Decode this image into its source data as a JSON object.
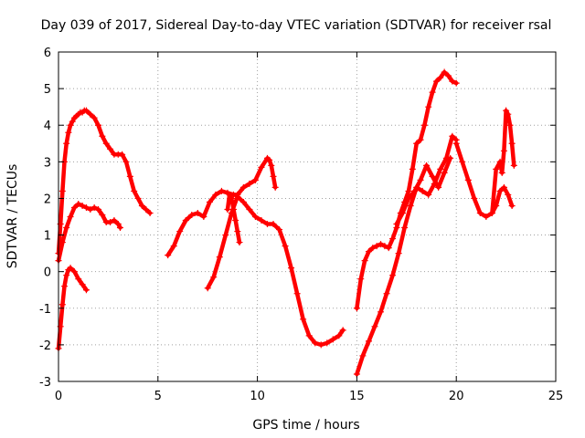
{
  "chart_data": {
    "type": "scatter",
    "title": "Day 039 of 2017, Sidereal Day-to-day VTEC variation (SDTVAR) for receiver rsal",
    "xlabel": "GPS time / hours",
    "ylabel": "SDTVAR / TECUs",
    "xlim": [
      0,
      25
    ],
    "ylim": [
      -3,
      6
    ],
    "xticks": [
      "0",
      "5",
      "10",
      "15",
      "20",
      "25"
    ],
    "yticks": [
      "-3",
      "-2",
      "-1",
      "0",
      "1",
      "2",
      "3",
      "4",
      "5",
      "6"
    ],
    "grid": true,
    "marker": "plus",
    "color": "#ff0000",
    "series": [
      {
        "x": [
          0,
          0.1,
          0.2,
          0.3,
          0.4,
          0.5,
          0.6,
          0.7,
          0.8,
          0.9,
          1.0,
          1.1,
          1.2,
          1.3,
          1.4,
          1.6,
          1.8,
          2.0,
          2.2,
          2.4,
          2.6,
          2.8,
          3.0,
          3.2,
          3.4,
          3.6,
          3.8,
          4.0,
          4.2,
          4.4,
          4.6
        ],
        "y": [
          0.5,
          1.3,
          2.2,
          3.0,
          3.5,
          3.8,
          4.0,
          4.1,
          4.2,
          4.25,
          4.3,
          4.35,
          4.35,
          4.4,
          4.4,
          4.3,
          4.2,
          4.0,
          3.7,
          3.5,
          3.35,
          3.2,
          3.2,
          3.2,
          3.0,
          2.6,
          2.2,
          2.0,
          1.8,
          1.7,
          1.6
        ]
      },
      {
        "x": [
          0,
          0.2,
          0.4,
          0.6,
          0.8,
          1.0,
          1.2,
          1.4,
          1.6,
          1.8,
          2.0,
          2.2,
          2.4,
          2.6,
          2.8,
          3.0,
          3.1
        ],
        "y": [
          0.3,
          0.8,
          1.2,
          1.5,
          1.75,
          1.85,
          1.8,
          1.75,
          1.7,
          1.75,
          1.7,
          1.55,
          1.35,
          1.35,
          1.4,
          1.3,
          1.2
        ]
      },
      {
        "x": [
          0,
          0.1,
          0.2,
          0.3,
          0.4,
          0.5,
          0.6,
          0.8,
          1.0,
          1.2,
          1.4
        ],
        "y": [
          -2.1,
          -1.5,
          -0.9,
          -0.4,
          -0.1,
          0.05,
          0.1,
          0.0,
          -0.2,
          -0.35,
          -0.5
        ]
      },
      {
        "x": [
          5.5,
          5.8,
          6.1,
          6.4,
          6.7,
          7.0,
          7.3,
          7.6,
          7.9,
          8.2,
          8.5,
          8.8,
          9.0,
          9.3,
          9.6,
          9.9,
          10.2,
          10.5,
          10.6,
          10.7,
          10.8,
          10.9
        ],
        "y": [
          0.45,
          0.7,
          1.1,
          1.4,
          1.55,
          1.6,
          1.5,
          1.9,
          2.1,
          2.2,
          2.15,
          2.1,
          2.1,
          2.3,
          2.4,
          2.5,
          2.85,
          3.1,
          3.05,
          2.9,
          2.6,
          2.3
        ]
      },
      {
        "x": [
          7.5,
          7.8,
          8.1,
          8.4,
          8.7,
          9.0,
          9.3,
          9.6,
          9.9,
          10.2,
          10.5,
          10.8,
          11.1,
          11.4,
          11.7,
          12.0,
          12.3,
          12.6,
          12.9,
          13.2,
          13.5,
          13.8,
          14.1,
          14.3
        ],
        "y": [
          -0.45,
          -0.15,
          0.4,
          1.0,
          1.6,
          2.05,
          1.9,
          1.7,
          1.5,
          1.4,
          1.3,
          1.3,
          1.15,
          0.7,
          0.1,
          -0.6,
          -1.3,
          -1.75,
          -1.95,
          -2.0,
          -1.95,
          -1.85,
          -1.75,
          -1.6
        ]
      },
      {
        "x": [
          8.5,
          8.6,
          8.7,
          8.8,
          8.9,
          9.0,
          9.1
        ],
        "y": [
          1.7,
          2.1,
          2.0,
          1.7,
          1.4,
          1.1,
          0.8
        ]
      },
      {
        "x": [
          15.0,
          15.2,
          15.4,
          15.6,
          15.8,
          16.0,
          16.2,
          16.4,
          16.6,
          16.8,
          17.0,
          17.2,
          17.4,
          17.6,
          17.8,
          18.0,
          18.2,
          18.4,
          18.6,
          18.8,
          19.0,
          19.2,
          19.4,
          19.6,
          19.8,
          20.0
        ],
        "y": [
          -1.0,
          -0.2,
          0.3,
          0.55,
          0.65,
          0.7,
          0.75,
          0.7,
          0.65,
          0.9,
          1.2,
          1.6,
          1.9,
          2.2,
          2.8,
          3.5,
          3.6,
          4.0,
          4.5,
          4.9,
          5.2,
          5.3,
          5.45,
          5.35,
          5.2,
          5.15
        ]
      },
      {
        "x": [
          15.0,
          15.3,
          15.6,
          15.9,
          16.2,
          16.5,
          16.8,
          17.1,
          17.4,
          17.7,
          18.0,
          18.3,
          18.6,
          18.9,
          19.2,
          19.5,
          19.8,
          20.0
        ],
        "y": [
          -2.8,
          -2.3,
          -1.9,
          -1.5,
          -1.1,
          -0.6,
          -0.1,
          0.5,
          1.2,
          1.8,
          2.3,
          2.2,
          2.1,
          2.4,
          2.8,
          3.1,
          3.7,
          3.6
        ]
      },
      {
        "x": [
          17.0,
          17.3,
          17.6,
          17.9,
          18.2,
          18.5,
          18.8,
          19.1,
          19.4,
          19.7
        ],
        "y": [
          1.3,
          1.6,
          2.0,
          2.2,
          2.5,
          2.9,
          2.6,
          2.3,
          2.7,
          3.1
        ]
      },
      {
        "x": [
          20.0,
          20.3,
          20.6,
          20.9,
          21.2,
          21.5,
          21.8,
          22.0,
          22.2,
          22.4,
          22.6,
          22.8
        ],
        "y": [
          3.5,
          3.0,
          2.5,
          2.0,
          1.6,
          1.5,
          1.6,
          1.8,
          2.2,
          2.3,
          2.1,
          1.8
        ]
      },
      {
        "x": [
          21.8,
          22.0,
          22.2,
          22.3,
          22.4,
          22.5,
          22.6,
          22.7,
          22.8,
          22.9
        ],
        "y": [
          1.6,
          2.8,
          3.0,
          2.7,
          3.3,
          4.4,
          4.3,
          4.0,
          3.5,
          2.9
        ]
      }
    ]
  }
}
